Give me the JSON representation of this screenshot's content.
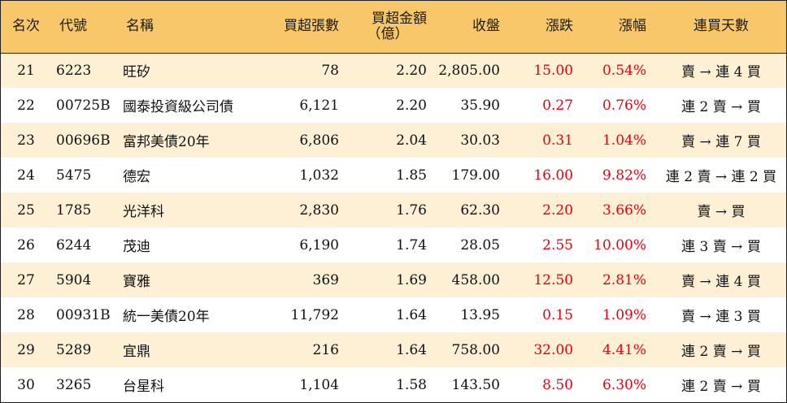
{
  "headers": {
    "rank": "名次",
    "code": "代號",
    "name": "名稱",
    "net_buy_lots": "買超張數",
    "net_buy_amount_line1": "買超金額",
    "net_buy_amount_line2": "（億）",
    "close": "收盤",
    "change": "漲跌",
    "change_pct": "漲幅",
    "consec_buy_days": "連買天數"
  },
  "colors": {
    "header_bg": "#f7c76a",
    "stripe_bg": "#fdf0d4",
    "up_red": "#e60012"
  },
  "rows": [
    {
      "rank": "21",
      "code": "6223",
      "name": "旺矽",
      "lots": "78",
      "amount": "2.20",
      "close": "2,805.00",
      "change": "15.00",
      "pct": "0.54%",
      "days": "賣 → 連 4 買"
    },
    {
      "rank": "22",
      "code": "00725B",
      "name": "國泰投資級公司債",
      "lots": "6,121",
      "amount": "2.20",
      "close": "35.90",
      "change": "0.27",
      "pct": "0.76%",
      "days": "連 2 賣 → 買"
    },
    {
      "rank": "23",
      "code": "00696B",
      "name": "富邦美債20年",
      "lots": "6,806",
      "amount": "2.04",
      "close": "30.03",
      "change": "0.31",
      "pct": "1.04%",
      "days": "賣 → 連 7 買"
    },
    {
      "rank": "24",
      "code": "5475",
      "name": "德宏",
      "lots": "1,032",
      "amount": "1.85",
      "close": "179.00",
      "change": "16.00",
      "pct": "9.82%",
      "days": "連 2 賣 → 連 2 買"
    },
    {
      "rank": "25",
      "code": "1785",
      "name": "光洋科",
      "lots": "2,830",
      "amount": "1.76",
      "close": "62.30",
      "change": "2.20",
      "pct": "3.66%",
      "days": "賣 → 買"
    },
    {
      "rank": "26",
      "code": "6244",
      "name": "茂迪",
      "lots": "6,190",
      "amount": "1.74",
      "close": "28.05",
      "change": "2.55",
      "pct": "10.00%",
      "days": "連 3 賣 → 買"
    },
    {
      "rank": "27",
      "code": "5904",
      "name": "寶雅",
      "lots": "369",
      "amount": "1.69",
      "close": "458.00",
      "change": "12.50",
      "pct": "2.81%",
      "days": "賣 → 連 4 買"
    },
    {
      "rank": "28",
      "code": "00931B",
      "name": "統一美債20年",
      "lots": "11,792",
      "amount": "1.64",
      "close": "13.95",
      "change": "0.15",
      "pct": "1.09%",
      "days": "賣 → 連 3 買"
    },
    {
      "rank": "29",
      "code": "5289",
      "name": "宜鼎",
      "lots": "216",
      "amount": "1.64",
      "close": "758.00",
      "change": "32.00",
      "pct": "4.41%",
      "days": "連 2 賣 → 買"
    },
    {
      "rank": "30",
      "code": "3265",
      "name": "台星科",
      "lots": "1,104",
      "amount": "1.58",
      "close": "143.50",
      "change": "8.50",
      "pct": "6.30%",
      "days": "連 2 賣 → 買"
    }
  ]
}
